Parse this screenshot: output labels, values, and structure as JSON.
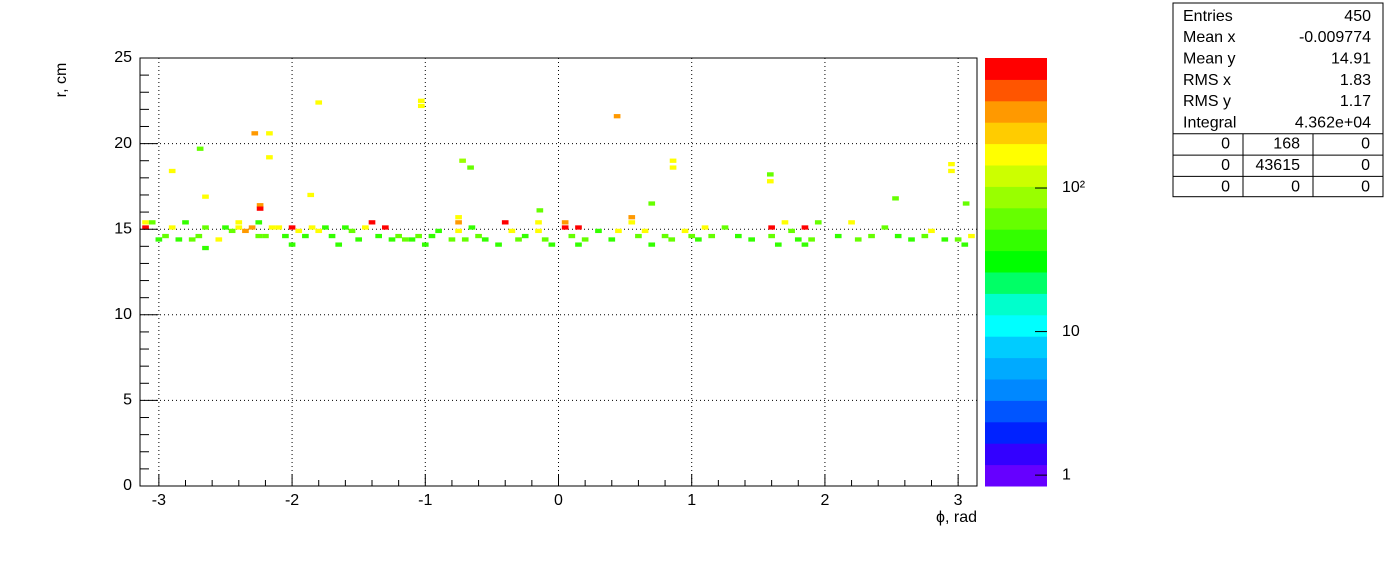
{
  "chart_data": {
    "type": "heatmap",
    "xlabel": "ϕ, rad",
    "ylabel": "r, cm",
    "xlim": [
      -3.1416,
      3.1416
    ],
    "ylim": [
      0,
      25
    ],
    "zlim": [
      0.84,
      805
    ],
    "zlog": true,
    "xticks": [
      -3,
      -2,
      -1,
      0,
      1,
      2,
      3
    ],
    "yticks": [
      0,
      5,
      10,
      15,
      20,
      25
    ],
    "zticks": [
      1,
      10,
      {
        "value": 100,
        "label": "10²"
      }
    ],
    "xminor": [
      -2.8,
      -2.6,
      -2.4,
      -2.2,
      -1.8,
      -1.6,
      -1.4,
      -1.2,
      -0.8,
      -0.6,
      -0.4,
      -0.2,
      0.2,
      0.4,
      0.6,
      0.8,
      1.2,
      1.4,
      1.6,
      1.8,
      2.2,
      2.4,
      2.6,
      2.8
    ],
    "yminor": [
      1,
      2,
      3,
      4,
      6,
      7,
      8,
      9,
      11,
      12,
      13,
      14,
      16,
      17,
      18,
      19,
      21,
      22,
      23,
      24
    ],
    "grid": true,
    "xbin": 0.05,
    "ybin": 0.25,
    "palette": [
      "#6600ff",
      "#3300ff",
      "#0022ff",
      "#0055ff",
      "#0088ff",
      "#00aaff",
      "#00ccff",
      "#00ffff",
      "#00ffcc",
      "#00ff66",
      "#00ff00",
      "#33ff00",
      "#66ff00",
      "#99ff00",
      "#ccff00",
      "#ffff00",
      "#ffcc00",
      "#ff9900",
      "#ff5500",
      "#ff0000"
    ],
    "x": [
      -1.8,
      -1.03,
      -1.03,
      -2.28,
      -2.17,
      -2.69,
      -2.17,
      -2.9,
      -0.72,
      -0.66,
      0.44,
      0.86,
      0.86,
      1.59,
      1.59,
      2.95,
      2.95,
      -1.86,
      -2.65,
      0.7,
      -2.24,
      -2.24,
      -0.14,
      2.53,
      3.06,
      -3.1,
      -3.1,
      -3.05,
      -3.0,
      -2.95,
      -2.9,
      -2.85,
      -2.8,
      -2.75,
      -2.7,
      -2.65,
      -2.65,
      -2.55,
      -2.5,
      -2.45,
      -2.4,
      -2.4,
      -2.35,
      -2.3,
      -2.25,
      -2.25,
      -2.2,
      -2.15,
      -2.1,
      -2.05,
      -2.0,
      -2.0,
      -1.95,
      -1.9,
      -1.85,
      -1.8,
      -1.75,
      -1.7,
      -1.65,
      -1.6,
      -1.55,
      -1.5,
      -1.45,
      -1.4,
      -1.35,
      -1.3,
      -1.25,
      -1.2,
      -1.15,
      -1.1,
      -1.05,
      -1.0,
      -0.95,
      -0.9,
      -0.8,
      -0.75,
      -0.75,
      -0.75,
      -0.7,
      -0.65,
      -0.6,
      -0.55,
      -0.45,
      -0.4,
      -0.35,
      -0.3,
      -0.25,
      -0.15,
      -0.15,
      -0.1,
      -0.05,
      0.05,
      0.05,
      0.1,
      0.15,
      0.15,
      0.2,
      0.3,
      0.4,
      0.45,
      0.55,
      0.55,
      0.6,
      0.65,
      0.7,
      0.8,
      0.85,
      0.95,
      1.0,
      1.05,
      1.1,
      1.15,
      1.25,
      1.35,
      1.45,
      1.6,
      1.6,
      1.65,
      1.7,
      1.75,
      1.8,
      1.85,
      1.85,
      1.9,
      1.95,
      2.1,
      2.2,
      2.25,
      2.35,
      2.45,
      2.55,
      2.65,
      2.75,
      2.8,
      2.9,
      3.0,
      3.05,
      3.1
    ],
    "y": [
      22.4,
      22.5,
      22.2,
      20.6,
      20.6,
      19.7,
      19.2,
      18.4,
      19.0,
      18.6,
      21.6,
      19.0,
      18.6,
      18.2,
      17.8,
      18.8,
      18.4,
      17.0,
      16.9,
      16.5,
      16.4,
      16.2,
      16.1,
      16.8,
      16.5,
      15.1,
      15.4,
      15.4,
      14.4,
      14.6,
      15.1,
      14.4,
      15.4,
      14.4,
      14.6,
      15.1,
      13.9,
      14.4,
      15.1,
      14.9,
      15.1,
      15.4,
      14.9,
      15.1,
      15.4,
      14.6,
      14.6,
      15.1,
      15.1,
      14.6,
      15.1,
      14.1,
      14.9,
      14.6,
      15.1,
      14.9,
      15.1,
      14.6,
      14.1,
      15.1,
      14.9,
      14.4,
      15.1,
      15.4,
      14.6,
      15.1,
      14.4,
      14.6,
      14.4,
      14.4,
      14.6,
      14.1,
      14.6,
      14.9,
      14.4,
      15.4,
      15.7,
      14.9,
      14.4,
      15.1,
      14.6,
      14.4,
      14.1,
      15.4,
      14.9,
      14.4,
      14.6,
      15.4,
      14.9,
      14.4,
      14.1,
      15.4,
      15.1,
      14.6,
      15.1,
      14.1,
      14.4,
      14.9,
      14.4,
      14.9,
      15.7,
      15.4,
      14.6,
      14.9,
      14.1,
      14.6,
      14.4,
      14.9,
      14.6,
      14.4,
      15.1,
      14.6,
      15.1,
      14.6,
      14.4,
      15.1,
      14.6,
      14.1,
      15.4,
      14.9,
      14.4,
      15.1,
      14.1,
      14.4,
      15.4,
      14.6,
      15.4,
      14.4,
      14.6,
      15.1,
      14.6,
      14.4,
      14.6,
      14.9,
      14.4,
      14.4,
      14.1,
      14.6
    ],
    "values": [
      150,
      150,
      150,
      400,
      150,
      60,
      150,
      150,
      100,
      60,
      400,
      150,
      150,
      60,
      150,
      150,
      150,
      150,
      150,
      60,
      400,
      700,
      60,
      60,
      60,
      700,
      150,
      60,
      50,
      60,
      150,
      50,
      50,
      60,
      60,
      60,
      50,
      150,
      50,
      60,
      150,
      150,
      400,
      400,
      50,
      60,
      60,
      150,
      150,
      50,
      700,
      50,
      150,
      50,
      150,
      150,
      50,
      50,
      50,
      50,
      60,
      50,
      150,
      700,
      50,
      700,
      50,
      60,
      60,
      50,
      60,
      50,
      50,
      50,
      60,
      400,
      150,
      150,
      60,
      50,
      60,
      50,
      50,
      700,
      150,
      60,
      50,
      150,
      150,
      60,
      50,
      400,
      700,
      60,
      700,
      50,
      60,
      50,
      50,
      150,
      400,
      150,
      60,
      150,
      50,
      60,
      60,
      150,
      60,
      50,
      150,
      60,
      60,
      50,
      50,
      700,
      60,
      50,
      150,
      60,
      50,
      700,
      50,
      60,
      60,
      50,
      150,
      60,
      60,
      60,
      50,
      50,
      60,
      150,
      50,
      60,
      50,
      150
    ]
  },
  "stats": {
    "labels": [
      "Entries",
      "Mean x",
      "Mean y",
      "RMS x",
      "RMS y",
      "Integral"
    ],
    "values": [
      450,
      -0.009774,
      14.91,
      1.83,
      1.17,
      "4.362e+04"
    ],
    "table": [
      [
        0,
        168,
        0
      ],
      [
        0,
        43615,
        0
      ],
      [
        0,
        0,
        0
      ]
    ]
  }
}
